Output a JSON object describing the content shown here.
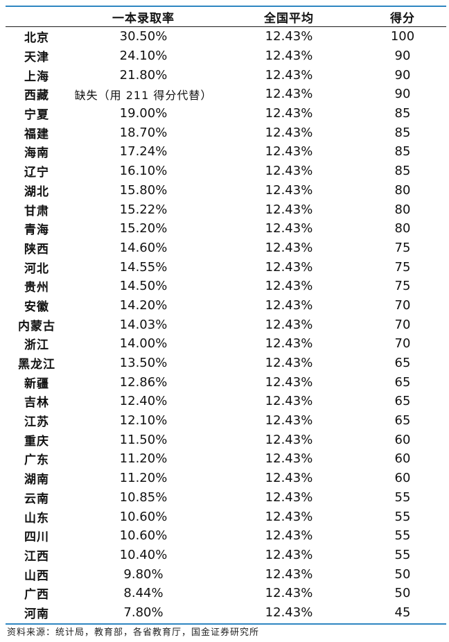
{
  "table": {
    "headers": {
      "province": "",
      "rate": "一本录取率",
      "average": "全国平均",
      "score": "得分"
    },
    "rows": [
      {
        "province": "北京",
        "rate": "30.50%",
        "average": "12.43%",
        "score": "100"
      },
      {
        "province": "天津",
        "rate": "24.10%",
        "average": "12.43%",
        "score": "90"
      },
      {
        "province": "上海",
        "rate": "21.80%",
        "average": "12.43%",
        "score": "90"
      },
      {
        "province": "西藏",
        "rate": "缺失（用 211 得分代替）",
        "average": "12.43%",
        "score": "90"
      },
      {
        "province": "宁夏",
        "rate": "19.00%",
        "average": "12.43%",
        "score": "85"
      },
      {
        "province": "福建",
        "rate": "18.70%",
        "average": "12.43%",
        "score": "85"
      },
      {
        "province": "海南",
        "rate": "17.24%",
        "average": "12.43%",
        "score": "85"
      },
      {
        "province": "辽宁",
        "rate": "16.10%",
        "average": "12.43%",
        "score": "85"
      },
      {
        "province": "湖北",
        "rate": "15.80%",
        "average": "12.43%",
        "score": "80"
      },
      {
        "province": "甘肃",
        "rate": "15.22%",
        "average": "12.43%",
        "score": "80"
      },
      {
        "province": "青海",
        "rate": "15.20%",
        "average": "12.43%",
        "score": "80"
      },
      {
        "province": "陕西",
        "rate": "14.60%",
        "average": "12.43%",
        "score": "75"
      },
      {
        "province": "河北",
        "rate": "14.55%",
        "average": "12.43%",
        "score": "75"
      },
      {
        "province": "贵州",
        "rate": "14.50%",
        "average": "12.43%",
        "score": "75"
      },
      {
        "province": "安徽",
        "rate": "14.20%",
        "average": "12.43%",
        "score": "70"
      },
      {
        "province": "内蒙古",
        "rate": "14.03%",
        "average": "12.43%",
        "score": "70"
      },
      {
        "province": "浙江",
        "rate": "14.00%",
        "average": "12.43%",
        "score": "70"
      },
      {
        "province": "黑龙江",
        "rate": "13.50%",
        "average": "12.43%",
        "score": "65"
      },
      {
        "province": "新疆",
        "rate": "12.86%",
        "average": "12.43%",
        "score": "65"
      },
      {
        "province": "吉林",
        "rate": "12.40%",
        "average": "12.43%",
        "score": "65"
      },
      {
        "province": "江苏",
        "rate": "12.10%",
        "average": "12.43%",
        "score": "65"
      },
      {
        "province": "重庆",
        "rate": "11.50%",
        "average": "12.43%",
        "score": "60"
      },
      {
        "province": "广东",
        "rate": "11.20%",
        "average": "12.43%",
        "score": "60"
      },
      {
        "province": "湖南",
        "rate": "11.20%",
        "average": "12.43%",
        "score": "60"
      },
      {
        "province": "云南",
        "rate": "10.85%",
        "average": "12.43%",
        "score": "55"
      },
      {
        "province": "山东",
        "rate": "10.60%",
        "average": "12.43%",
        "score": "55"
      },
      {
        "province": "四川",
        "rate": "10.60%",
        "average": "12.43%",
        "score": "55"
      },
      {
        "province": "江西",
        "rate": "10.40%",
        "average": "12.43%",
        "score": "55"
      },
      {
        "province": "山西",
        "rate": "9.80%",
        "average": "12.43%",
        "score": "50"
      },
      {
        "province": "广西",
        "rate": "8.44%",
        "average": "12.43%",
        "score": "50"
      },
      {
        "province": "河南",
        "rate": "7.80%",
        "average": "12.43%",
        "score": "45"
      }
    ],
    "rule_color": "#2e86c1"
  },
  "footer": {
    "source": "资料来源：统计局，教育部，各省教育厅，国金证券研究所"
  }
}
